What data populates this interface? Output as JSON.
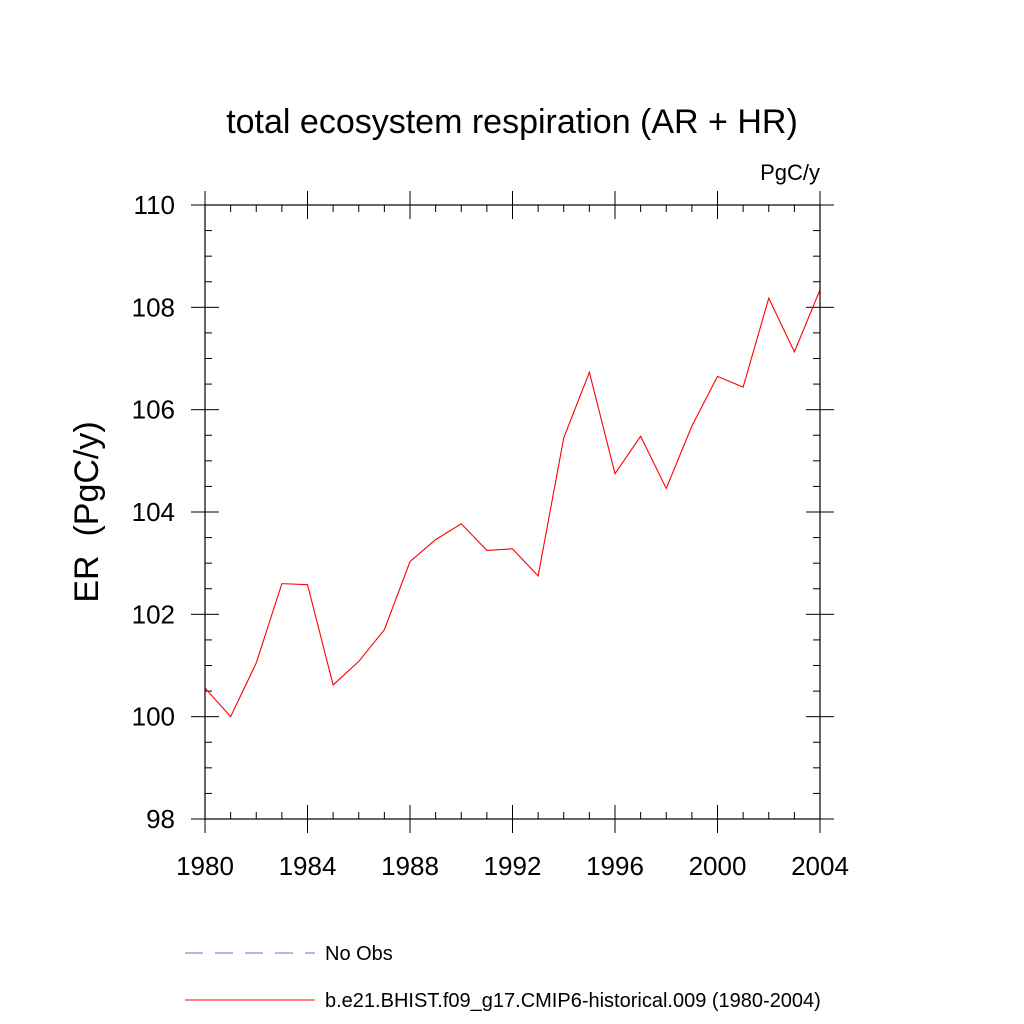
{
  "chart_data": {
    "type": "line",
    "title": "total ecosystem respiration (AR + HR)",
    "units_label": "PgC/y",
    "xlabel": "",
    "ylabel": "ER  (PgC/y)",
    "xlim": [
      1980,
      2004
    ],
    "ylim": [
      98,
      110
    ],
    "x_ticks": [
      "1980",
      "1984",
      "1988",
      "1992",
      "1996",
      "2000",
      "2004"
    ],
    "y_ticks": [
      "98",
      "100",
      "102",
      "104",
      "106",
      "108",
      "110"
    ],
    "series": [
      {
        "name": "b.e21.BHIST.f09_g17.CMIP6-historical.009 (1980-2004)",
        "color": "#ff0000",
        "style": "solid",
        "x": [
          1980,
          1981,
          1982,
          1983,
          1984,
          1985,
          1986,
          1987,
          1988,
          1989,
          1990,
          1991,
          1992,
          1993,
          1994,
          1995,
          1996,
          1997,
          1998,
          1999,
          2000,
          2001,
          2002,
          2003,
          2004
        ],
        "values": [
          100.56,
          100.0,
          101.05,
          102.6,
          102.58,
          100.62,
          101.08,
          101.7,
          103.03,
          103.46,
          103.77,
          103.25,
          103.28,
          102.75,
          105.45,
          106.73,
          104.75,
          105.48,
          104.46,
          105.68,
          106.65,
          106.44,
          108.18,
          107.13,
          108.34
        ]
      }
    ],
    "legend": [
      {
        "label": "No Obs",
        "color": "#6b6bcf",
        "style": "dashed"
      },
      {
        "label": "b.e21.BHIST.f09_g17.CMIP6-historical.009 (1980-2004)",
        "color": "#ff0000",
        "style": "solid"
      }
    ],
    "legend_position": "bottom"
  }
}
